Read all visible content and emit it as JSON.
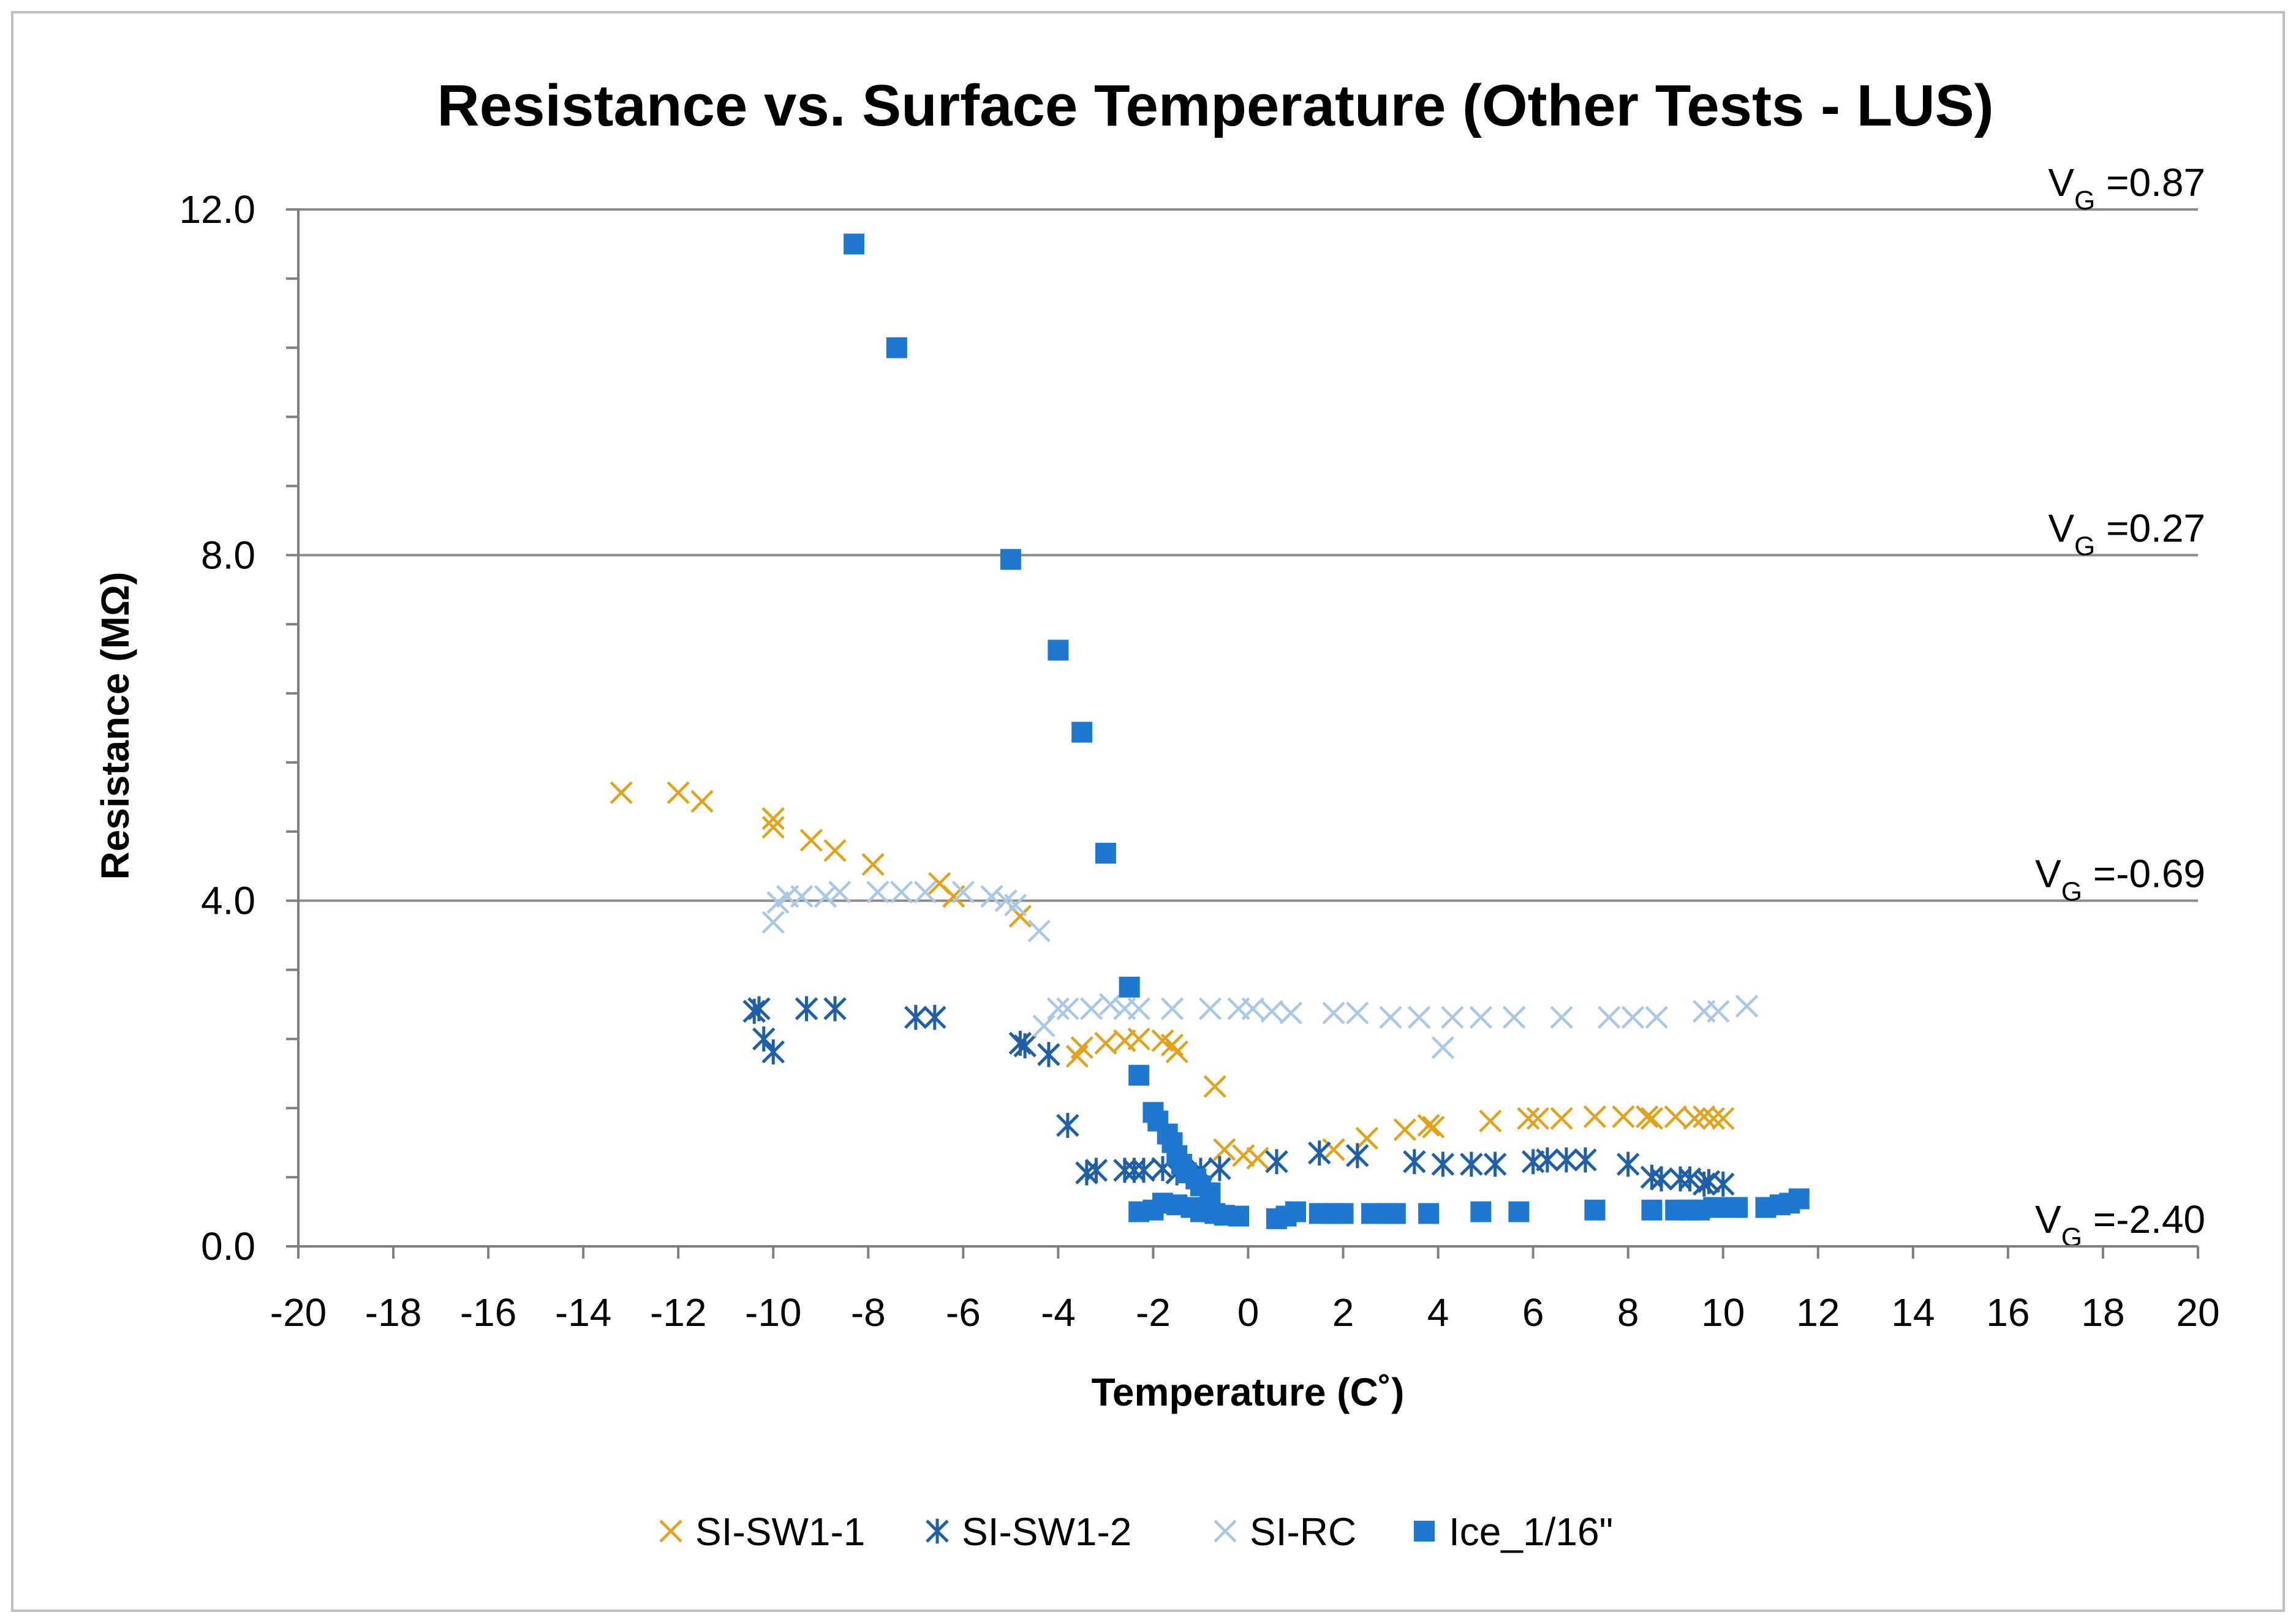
{
  "chart_data": {
    "type": "scatter",
    "title": "Resistance vs. Surface Temperature (Other Tests - LUS)",
    "xlabel": "Temperature (C˚)",
    "ylabel": "Resistance (MΩ)",
    "xlim": [
      -20,
      20
    ],
    "ylim": [
      0,
      12
    ],
    "x_ticks": [
      "-20",
      "-18",
      "-16",
      "-14",
      "-12",
      "-10",
      "-8",
      "-6",
      "-4",
      "-2",
      "0",
      "2",
      "4",
      "6",
      "8",
      "10",
      "12",
      "14",
      "16",
      "18",
      "20"
    ],
    "y_ticks": [
      "0.0",
      "4.0",
      "8.0",
      "12.0"
    ],
    "y_tick_values": [
      0,
      4,
      8,
      12
    ],
    "y_minor_step": 0.8,
    "reference_lines": [
      {
        "y": 12,
        "prefix": "V",
        "sub": "G",
        "value": " =0.87"
      },
      {
        "y": 8,
        "prefix": "V",
        "sub": "G",
        "value": " =0.27"
      },
      {
        "y": 4,
        "prefix": "V",
        "sub": "G",
        "value": " =-0.69"
      },
      {
        "y": 0,
        "prefix": "V",
        "sub": "G",
        "value": " =-2.40"
      }
    ],
    "series": [
      {
        "name": "SI-SW1-1",
        "marker": "x",
        "color": "#E3A21A",
        "points": [
          [
            -13.2,
            5.25
          ],
          [
            -12.0,
            5.25
          ],
          [
            -11.5,
            5.15
          ],
          [
            -10.0,
            4.95
          ],
          [
            -10.0,
            4.85
          ],
          [
            -9.2,
            4.7
          ],
          [
            -8.7,
            4.58
          ],
          [
            -7.9,
            4.42
          ],
          [
            -6.5,
            4.2
          ],
          [
            -6.2,
            4.05
          ],
          [
            -4.8,
            3.82
          ],
          [
            -3.6,
            2.2
          ],
          [
            -3.5,
            2.3
          ],
          [
            -3.0,
            2.35
          ],
          [
            -2.6,
            2.38
          ],
          [
            -2.3,
            2.4
          ],
          [
            -1.8,
            2.38
          ],
          [
            -1.6,
            2.33
          ],
          [
            -1.5,
            2.25
          ],
          [
            -0.7,
            1.85
          ],
          [
            -0.5,
            1.12
          ],
          [
            -0.1,
            1.05
          ],
          [
            0.2,
            1.02
          ],
          [
            1.5,
            1.08
          ],
          [
            1.8,
            1.12
          ],
          [
            2.5,
            1.25
          ],
          [
            3.3,
            1.35
          ],
          [
            3.8,
            1.4
          ],
          [
            3.9,
            1.38
          ],
          [
            5.1,
            1.45
          ],
          [
            5.9,
            1.48
          ],
          [
            6.1,
            1.48
          ],
          [
            6.6,
            1.48
          ],
          [
            7.3,
            1.5
          ],
          [
            7.9,
            1.5
          ],
          [
            8.4,
            1.5
          ],
          [
            8.5,
            1.48
          ],
          [
            9.0,
            1.5
          ],
          [
            9.4,
            1.48
          ],
          [
            9.6,
            1.5
          ],
          [
            9.8,
            1.48
          ],
          [
            10.0,
            1.48
          ]
        ]
      },
      {
        "name": "SI-SW1-2",
        "marker": "asterisk",
        "color": "#1F5FA8",
        "points": [
          [
            -10.4,
            2.72
          ],
          [
            -10.3,
            2.75
          ],
          [
            -10.2,
            2.4
          ],
          [
            -10.0,
            2.25
          ],
          [
            -9.3,
            2.75
          ],
          [
            -8.7,
            2.75
          ],
          [
            -7.0,
            2.65
          ],
          [
            -6.6,
            2.65
          ],
          [
            -4.8,
            2.35
          ],
          [
            -4.7,
            2.32
          ],
          [
            -4.2,
            2.22
          ],
          [
            -3.8,
            1.4
          ],
          [
            -3.4,
            0.85
          ],
          [
            -3.2,
            0.88
          ],
          [
            -2.6,
            0.88
          ],
          [
            -2.4,
            0.88
          ],
          [
            -2.2,
            0.88
          ],
          [
            -1.8,
            0.9
          ],
          [
            -1.5,
            0.85
          ],
          [
            -1.0,
            0.88
          ],
          [
            -0.6,
            0.9
          ],
          [
            0.6,
            0.98
          ],
          [
            1.5,
            1.08
          ],
          [
            2.3,
            1.05
          ],
          [
            3.5,
            0.98
          ],
          [
            4.1,
            0.95
          ],
          [
            4.7,
            0.95
          ],
          [
            5.2,
            0.95
          ],
          [
            6.0,
            0.98
          ],
          [
            6.3,
            1.0
          ],
          [
            6.7,
            1.0
          ],
          [
            7.1,
            1.0
          ],
          [
            8.0,
            0.95
          ],
          [
            8.5,
            0.8
          ],
          [
            8.7,
            0.78
          ],
          [
            9.1,
            0.78
          ],
          [
            9.3,
            0.78
          ],
          [
            9.6,
            0.72
          ],
          [
            9.7,
            0.75
          ],
          [
            10.0,
            0.72
          ]
        ]
      },
      {
        "name": "SI-RC",
        "marker": "x",
        "color": "#A9C8E8",
        "points": [
          [
            -10.0,
            3.75
          ],
          [
            -9.9,
            3.98
          ],
          [
            -9.7,
            4.05
          ],
          [
            -9.4,
            4.05
          ],
          [
            -8.9,
            4.05
          ],
          [
            -8.6,
            4.1
          ],
          [
            -7.8,
            4.1
          ],
          [
            -7.3,
            4.1
          ],
          [
            -6.8,
            4.1
          ],
          [
            -6.0,
            4.1
          ],
          [
            -5.4,
            4.05
          ],
          [
            -5.1,
            4.0
          ],
          [
            -4.9,
            3.95
          ],
          [
            -4.4,
            3.65
          ],
          [
            -4.3,
            2.55
          ],
          [
            -4.0,
            2.75
          ],
          [
            -3.8,
            2.75
          ],
          [
            -3.3,
            2.75
          ],
          [
            -2.9,
            2.8
          ],
          [
            -2.6,
            2.75
          ],
          [
            -2.3,
            2.75
          ],
          [
            -1.6,
            2.75
          ],
          [
            -0.8,
            2.75
          ],
          [
            -0.2,
            2.75
          ],
          [
            0.1,
            2.75
          ],
          [
            0.5,
            2.72
          ],
          [
            0.9,
            2.7
          ],
          [
            1.8,
            2.7
          ],
          [
            2.3,
            2.7
          ],
          [
            3.0,
            2.65
          ],
          [
            3.6,
            2.65
          ],
          [
            4.1,
            2.3
          ],
          [
            4.3,
            2.65
          ],
          [
            4.9,
            2.65
          ],
          [
            5.6,
            2.65
          ],
          [
            6.6,
            2.65
          ],
          [
            7.6,
            2.65
          ],
          [
            8.1,
            2.65
          ],
          [
            8.6,
            2.65
          ],
          [
            9.6,
            2.72
          ],
          [
            9.9,
            2.72
          ],
          [
            10.5,
            2.78
          ]
        ]
      },
      {
        "name": "Ice_1/16\"",
        "marker": "square",
        "color": "#1E78D0",
        "points": [
          [
            -8.3,
            11.6
          ],
          [
            -7.4,
            10.4
          ],
          [
            -5.0,
            7.95
          ],
          [
            -4.0,
            6.9
          ],
          [
            -3.5,
            5.95
          ],
          [
            -3.0,
            4.55
          ],
          [
            -2.5,
            3.0
          ],
          [
            -2.3,
            1.98
          ],
          [
            -2.0,
            1.55
          ],
          [
            -1.9,
            1.45
          ],
          [
            -1.7,
            1.3
          ],
          [
            -1.6,
            1.2
          ],
          [
            -1.5,
            1.05
          ],
          [
            -1.4,
            0.95
          ],
          [
            -1.3,
            0.85
          ],
          [
            -1.1,
            0.78
          ],
          [
            -1.0,
            0.7
          ],
          [
            -0.8,
            0.62
          ],
          [
            -2.3,
            0.4
          ],
          [
            -2.0,
            0.42
          ],
          [
            -1.8,
            0.5
          ],
          [
            -1.5,
            0.48
          ],
          [
            -1.2,
            0.45
          ],
          [
            -1.0,
            0.4
          ],
          [
            -0.7,
            0.38
          ],
          [
            -0.5,
            0.36
          ],
          [
            -0.2,
            0.35
          ],
          [
            0.6,
            0.32
          ],
          [
            0.8,
            0.35
          ],
          [
            1.0,
            0.4
          ],
          [
            1.5,
            0.38
          ],
          [
            1.8,
            0.38
          ],
          [
            2.0,
            0.38
          ],
          [
            2.6,
            0.38
          ],
          [
            2.9,
            0.38
          ],
          [
            3.1,
            0.38
          ],
          [
            3.8,
            0.38
          ],
          [
            4.9,
            0.4
          ],
          [
            5.7,
            0.4
          ],
          [
            7.3,
            0.42
          ],
          [
            8.5,
            0.42
          ],
          [
            9.0,
            0.42
          ],
          [
            9.3,
            0.42
          ],
          [
            9.5,
            0.42
          ],
          [
            9.8,
            0.45
          ],
          [
            10.1,
            0.45
          ],
          [
            10.3,
            0.45
          ],
          [
            10.9,
            0.45
          ],
          [
            11.2,
            0.48
          ],
          [
            11.4,
            0.5
          ],
          [
            11.6,
            0.55
          ]
        ]
      }
    ]
  }
}
